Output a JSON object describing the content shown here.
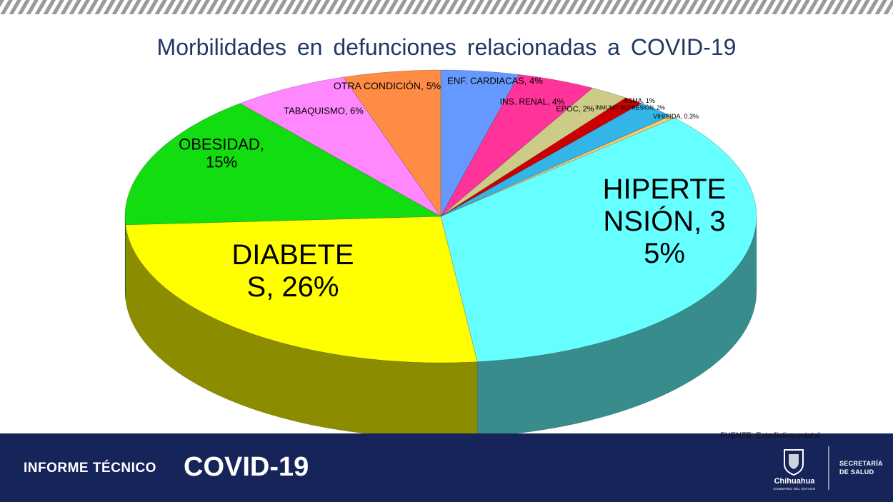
{
  "chart_data": {
    "type": "pie3d",
    "title": "Morbilidades en defunciones relacionadas a COVID-19",
    "values": [
      4,
      4,
      2,
      1,
      2,
      0.3,
      35,
      26,
      15,
      6,
      5
    ],
    "value_labels": [
      "ENF. CARDIACAS, 4%",
      "INS. RENAL, 4%",
      "EPOC, 2%",
      "ASMA, 1%",
      "INMUNO SUPRESIÓN, 2%",
      "VIH/SIDA, 0.3%",
      "HIPERTENSIÓN, 35%",
      "DIABETES, 26%",
      "OBESIDAD, 15%",
      "TABAQUISMO, 6%",
      "OTRA CONDICIÓN, 5%"
    ],
    "colors": [
      "#6699ff",
      "#ff3399",
      "#cccc88",
      "#cc0000",
      "#33b5e8",
      "#ffcc66",
      "#66ffff",
      "#ffff00",
      "#11dd11",
      "#ff88ff",
      "#ff8c44"
    ],
    "source": "FUENTE: Estadística estatal."
  },
  "footer": {
    "label": "INFORME TÉCNICO",
    "topic": "COVID-19",
    "state": "Chihuahua",
    "state_sub": "GOBIERNO DEL ESTADO",
    "dept_line1": "SECRETARÍA",
    "dept_line2": "DE SALUD"
  }
}
